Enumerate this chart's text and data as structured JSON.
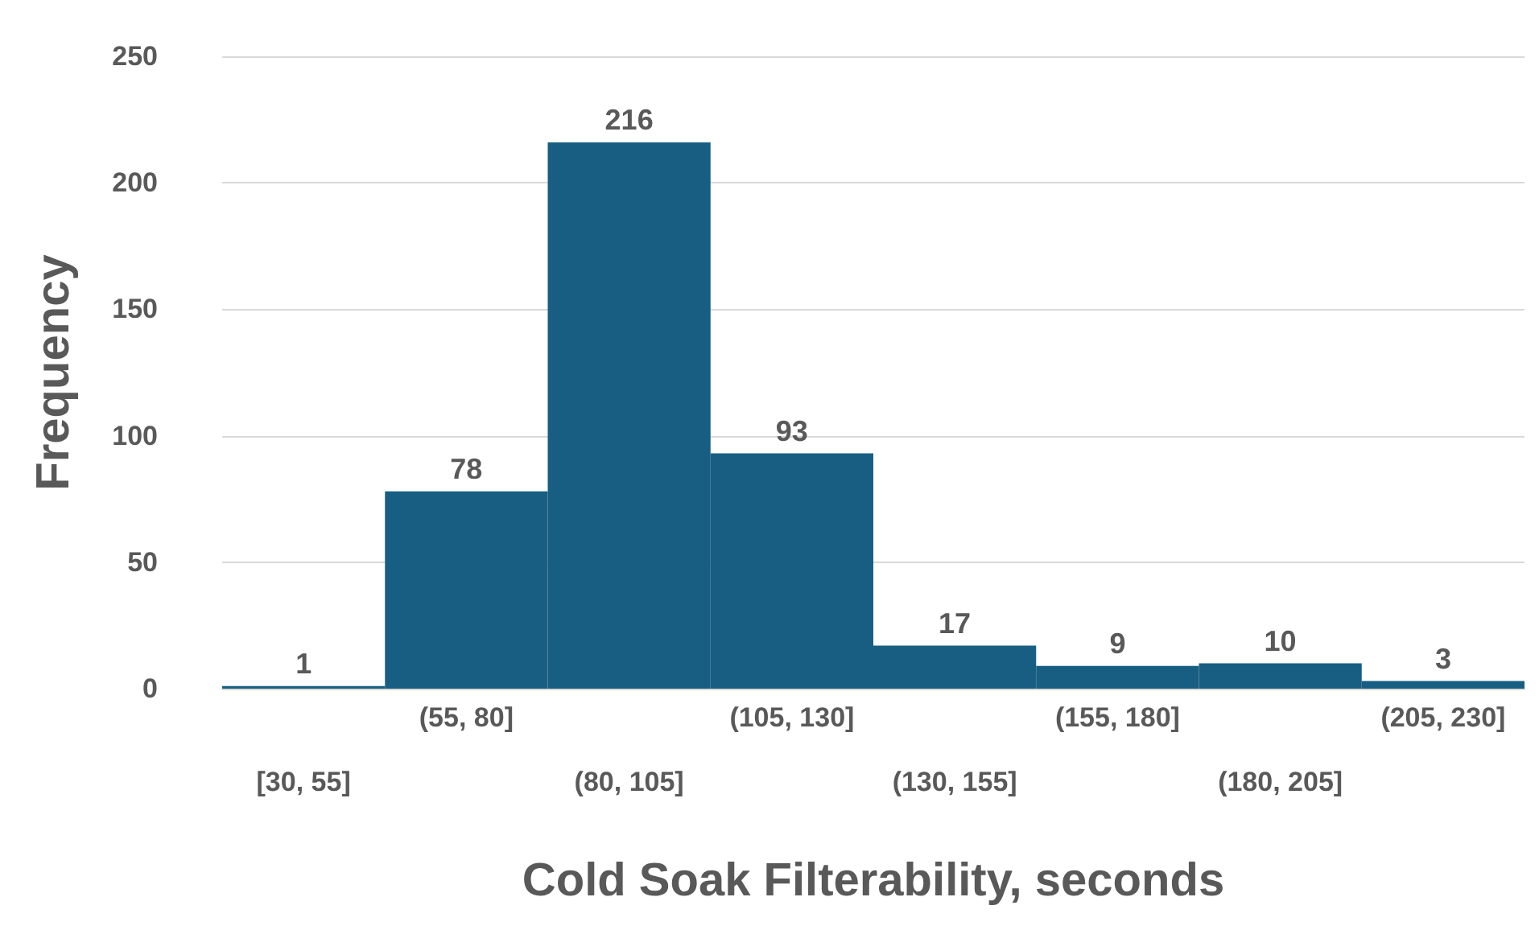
{
  "chart_data": {
    "type": "bar",
    "xlabel": "Cold Soak Filterability, seconds",
    "ylabel": "Frequency",
    "categories": [
      "[30, 55]",
      "(55, 80]",
      "(80, 105]",
      "(105, 130]",
      "(130, 155]",
      "(155, 180]",
      "(180, 205]",
      "(205, 230]"
    ],
    "values": [
      1,
      78,
      216,
      93,
      17,
      9,
      10,
      3
    ],
    "color": "#175e82",
    "ylim": [
      0,
      250
    ],
    "yticks": [
      0,
      50,
      100,
      150,
      200,
      250
    ],
    "grid": "y",
    "data_labels": true
  }
}
